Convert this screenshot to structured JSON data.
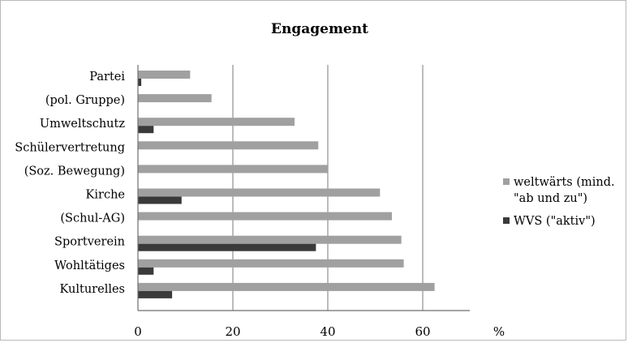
{
  "chart_data": {
    "type": "bar",
    "orientation": "horizontal",
    "title": "Engagement",
    "xlabel": "%",
    "ylabel": "",
    "xlim": [
      0,
      70
    ],
    "xticks": [
      0,
      20,
      40,
      60
    ],
    "grid": true,
    "legend_position": "right",
    "categories": [
      "Partei",
      "(pol. Gruppe)",
      "Umweltschutz",
      "Schülervertretung",
      "(Soz. Bewegung)",
      "Kirche",
      "(Schul-AG)",
      "Sportverein",
      "Wohltätiges",
      "Kulturelles"
    ],
    "series": [
      {
        "name": "weltwärts (mind. \"ab und zu\")",
        "legend_lines": [
          "weltwärts (mind.",
          "\"ab und zu\")"
        ],
        "color": "#a0a0a0",
        "values": [
          11,
          15.5,
          33,
          38,
          40,
          51,
          53.5,
          55.5,
          56,
          62.5
        ]
      },
      {
        "name": "WVS (\"aktiv\")",
        "legend_lines": [
          "WVS (\"aktiv\")"
        ],
        "color": "#3a3a3a",
        "values": [
          0.7,
          null,
          3.3,
          null,
          null,
          9.2,
          null,
          37.5,
          3.3,
          7.2
        ]
      }
    ]
  }
}
